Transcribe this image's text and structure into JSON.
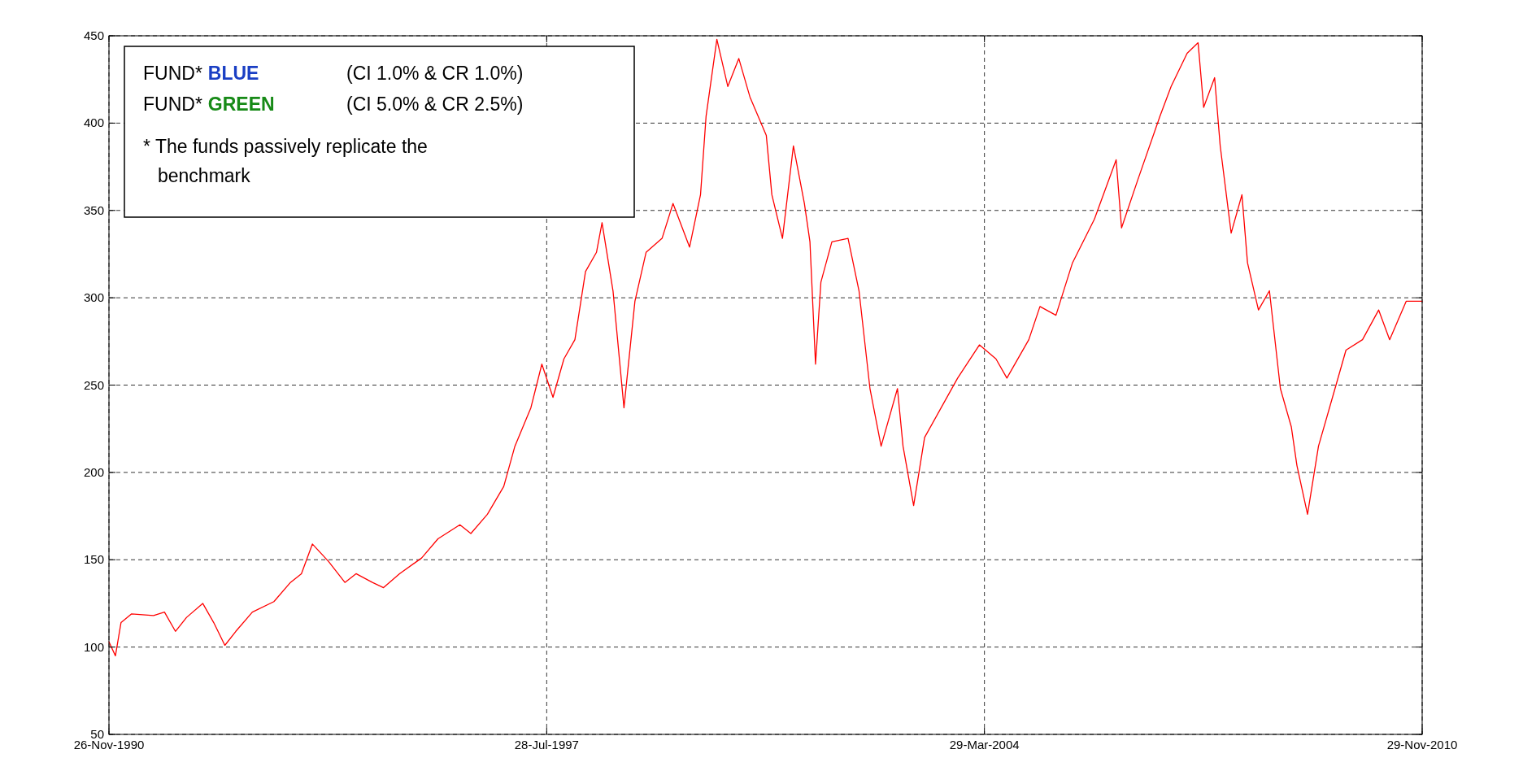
{
  "chart_data": {
    "type": "line",
    "annotations": [
      "FUND*",
      "BLUE",
      "(CI 1.0% & CR 1.0%)",
      "FUND*",
      "GREEN",
      "(CI 5.0% & CR 2.5%)",
      "* The funds passively replicate the benchmark"
    ],
    "x": [
      "1990-11-26",
      "1991-01",
      "1991-02",
      "1991-04",
      "1991-08",
      "1991-10",
      "1991-12",
      "1992-02",
      "1992-05",
      "1992-07",
      "1992-09",
      "1992-11",
      "1993-02",
      "1993-06",
      "1993-09",
      "1993-11",
      "1994-01",
      "1994-04",
      "1994-07",
      "1994-09",
      "1994-12",
      "1995-02",
      "1995-05",
      "1995-09",
      "1995-12",
      "1996-04",
      "1996-06",
      "1996-09",
      "1996-12",
      "1997-02",
      "1997-05",
      "1997-07",
      "1997-09",
      "1997-11",
      "1998-01",
      "1998-03",
      "1998-05",
      "1998-06",
      "1998-08",
      "1998-10",
      "1998-12",
      "1999-02",
      "1999-05",
      "1999-07",
      "1999-10",
      "1999-12",
      "2000-01",
      "2000-03",
      "2000-05",
      "2000-07",
      "2000-09",
      "2000-12",
      "2001-01",
      "2001-03",
      "2001-05",
      "2001-07",
      "2001-08",
      "2001-09",
      "2001-10",
      "2001-12",
      "2002-03",
      "2002-05",
      "2002-07",
      "2002-09",
      "2002-12",
      "2003-01",
      "2003-03",
      "2003-05",
      "2003-08",
      "2003-11",
      "2004-03",
      "2004-06",
      "2004-08",
      "2004-12",
      "2005-02",
      "2005-05",
      "2005-08",
      "2005-12",
      "2006-04",
      "2006-05",
      "2006-08",
      "2006-12",
      "2007-02",
      "2007-05",
      "2007-07",
      "2007-08",
      "2007-10",
      "2007-11",
      "2008-01",
      "2008-03",
      "2008-04",
      "2008-06",
      "2008-08",
      "2008-10",
      "2008-12",
      "2009-01",
      "2009-03",
      "2009-05",
      "2009-08",
      "2009-10",
      "2010-01",
      "2010-04",
      "2010-06",
      "2010-09",
      "2010-11-29"
    ],
    "series": [
      {
        "color": "#ff0000",
        "values": [
          103,
          95,
          114,
          119,
          118,
          120,
          109,
          117,
          125,
          114,
          101,
          109,
          120,
          126,
          137,
          142,
          159,
          149,
          137,
          142,
          137,
          134,
          142,
          151,
          162,
          170,
          165,
          176,
          192,
          215,
          237,
          262,
          243,
          265,
          276,
          315,
          326,
          343,
          304,
          237,
          298,
          326,
          334,
          354,
          329,
          359,
          404,
          448,
          421,
          437,
          415,
          393,
          359,
          334,
          387,
          354,
          332,
          262,
          309,
          332,
          334,
          304,
          248,
          215,
          248,
          215,
          181,
          220,
          237,
          254,
          273,
          265,
          254,
          276,
          295,
          290,
          320,
          345,
          379,
          340,
          368,
          404,
          421,
          440,
          446,
          409,
          426,
          387,
          337,
          359,
          320,
          293,
          304,
          248,
          226,
          204,
          176,
          215,
          248,
          270,
          276,
          293,
          276,
          298,
          298
        ]
      }
    ],
    "xlim": [
      "1990-11-26",
      "2010-11-29"
    ],
    "xticks": [
      {
        "value": "1990-11-26",
        "label": "26-Nov-1990"
      },
      {
        "value": "1997-07-28",
        "label": "28-Jul-1997"
      },
      {
        "value": "2004-03-29",
        "label": "29-Mar-2004"
      },
      {
        "value": "2010-11-29",
        "label": "29-Nov-2010"
      }
    ],
    "ylim": [
      50,
      450
    ],
    "yticks": [
      50,
      100,
      150,
      200,
      250,
      300,
      350,
      400,
      450
    ],
    "grid": true
  }
}
